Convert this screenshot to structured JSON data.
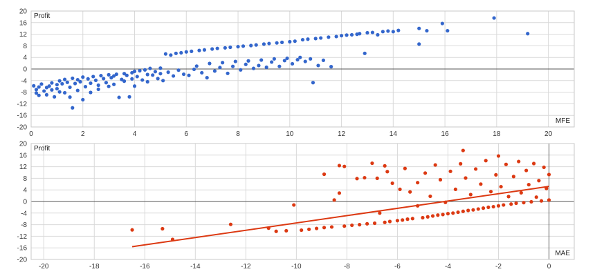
{
  "chart_data": [
    {
      "type": "scatter",
      "title": "",
      "ylabel": "Profit",
      "xlabel": "MFE",
      "xlim": [
        0,
        21
      ],
      "ylim": [
        -20,
        20
      ],
      "xticks": [
        "0",
        "2",
        "4",
        "6",
        "8",
        "10",
        "12",
        "14",
        "16",
        "18",
        "20"
      ],
      "yticks": [
        "-20",
        "-16",
        "-12",
        "-8",
        "-4",
        "0",
        "4",
        "8",
        "12",
        "16",
        "20"
      ],
      "grid": true,
      "color": "#3366cc",
      "series": [
        {
          "values": [
            [
              0.1,
              -5.8
            ],
            [
              0.2,
              -7.1
            ],
            [
              0.2,
              -8.3
            ],
            [
              0.3,
              -6.2
            ],
            [
              0.3,
              -9.1
            ],
            [
              0.4,
              -5.2
            ],
            [
              0.5,
              -7.6
            ],
            [
              0.6,
              -6.4
            ],
            [
              0.6,
              -8.9
            ],
            [
              0.7,
              -5.9
            ],
            [
              0.8,
              -4.8
            ],
            [
              0.8,
              -7.2
            ],
            [
              0.9,
              -9.6
            ],
            [
              1.0,
              -5.4
            ],
            [
              1.0,
              -6.8
            ],
            [
              1.1,
              -4.1
            ],
            [
              1.1,
              -7.9
            ],
            [
              1.2,
              -5.1
            ],
            [
              1.3,
              -3.6
            ],
            [
              1.3,
              -8.2
            ],
            [
              1.4,
              -4.6
            ],
            [
              1.5,
              -6.3
            ],
            [
              1.5,
              -9.7
            ],
            [
              1.6,
              -3.2
            ],
            [
              1.6,
              -13.4
            ],
            [
              1.7,
              -5.0
            ],
            [
              1.8,
              -3.7
            ],
            [
              1.8,
              -7.4
            ],
            [
              1.9,
              -4.4
            ],
            [
              2.0,
              -2.8
            ],
            [
              2.0,
              -10.6
            ],
            [
              2.1,
              -6.1
            ],
            [
              2.2,
              -3.4
            ],
            [
              2.3,
              -4.9
            ],
            [
              2.3,
              -8.1
            ],
            [
              2.4,
              -2.6
            ],
            [
              2.5,
              -3.9
            ],
            [
              2.6,
              -5.6
            ],
            [
              2.6,
              -7.0
            ],
            [
              2.7,
              -2.3
            ],
            [
              2.8,
              -3.3
            ],
            [
              2.9,
              -4.7
            ],
            [
              3.0,
              -2.0
            ],
            [
              3.0,
              -6.0
            ],
            [
              3.1,
              -3.0
            ],
            [
              3.2,
              -2.4
            ],
            [
              3.2,
              -5.3
            ],
            [
              3.3,
              -1.8
            ],
            [
              3.4,
              -9.8
            ],
            [
              3.5,
              -3.6
            ],
            [
              3.6,
              -1.6
            ],
            [
              3.6,
              -4.2
            ],
            [
              3.7,
              -2.2
            ],
            [
              3.8,
              -9.6
            ],
            [
              3.9,
              -1.3
            ],
            [
              3.9,
              -3.4
            ],
            [
              4.0,
              -0.8
            ],
            [
              4.0,
              -5.9
            ],
            [
              4.1,
              -2.6
            ],
            [
              4.2,
              -0.6
            ],
            [
              4.3,
              -3.8
            ],
            [
              4.4,
              -0.3
            ],
            [
              4.5,
              -1.9
            ],
            [
              4.5,
              -4.4
            ],
            [
              4.6,
              0.2
            ],
            [
              4.7,
              -2.1
            ],
            [
              4.8,
              -0.9
            ],
            [
              4.9,
              -3.3
            ],
            [
              5.0,
              0.3
            ],
            [
              5.0,
              -1.6
            ],
            [
              5.1,
              -4.0
            ],
            [
              5.2,
              5.2
            ],
            [
              5.3,
              -1.1
            ],
            [
              5.4,
              4.8
            ],
            [
              5.5,
              -2.4
            ],
            [
              5.6,
              5.4
            ],
            [
              5.7,
              -0.4
            ],
            [
              5.8,
              5.6
            ],
            [
              5.9,
              -1.8
            ],
            [
              6.0,
              5.9
            ],
            [
              6.1,
              -2.2
            ],
            [
              6.2,
              6.1
            ],
            [
              6.3,
              -0.1
            ],
            [
              6.4,
              1.0
            ],
            [
              6.5,
              6.4
            ],
            [
              6.6,
              -1.3
            ],
            [
              6.7,
              6.6
            ],
            [
              6.8,
              -3.0
            ],
            [
              6.9,
              1.9
            ],
            [
              7.0,
              6.9
            ],
            [
              7.1,
              -0.7
            ],
            [
              7.2,
              7.1
            ],
            [
              7.3,
              0.5
            ],
            [
              7.4,
              2.2
            ],
            [
              7.5,
              7.3
            ],
            [
              7.6,
              -1.5
            ],
            [
              7.7,
              7.5
            ],
            [
              7.8,
              0.9
            ],
            [
              7.9,
              2.6
            ],
            [
              8.0,
              7.7
            ],
            [
              8.1,
              -0.3
            ],
            [
              8.2,
              7.9
            ],
            [
              8.3,
              1.6
            ],
            [
              8.4,
              2.8
            ],
            [
              8.5,
              8.1
            ],
            [
              8.6,
              0.2
            ],
            [
              8.7,
              8.3
            ],
            [
              8.8,
              1.2
            ],
            [
              8.9,
              3.1
            ],
            [
              9.0,
              8.6
            ],
            [
              9.1,
              0.6
            ],
            [
              9.2,
              8.8
            ],
            [
              9.3,
              2.4
            ],
            [
              9.4,
              3.5
            ],
            [
              9.5,
              9.0
            ],
            [
              9.6,
              0.9
            ],
            [
              9.7,
              9.2
            ],
            [
              9.8,
              2.9
            ],
            [
              9.9,
              3.7
            ],
            [
              10.0,
              9.4
            ],
            [
              10.1,
              1.8
            ],
            [
              10.2,
              9.6
            ],
            [
              10.3,
              3.2
            ],
            [
              10.4,
              4.0
            ],
            [
              10.5,
              10.1
            ],
            [
              10.6,
              2.6
            ],
            [
              10.7,
              10.3
            ],
            [
              10.8,
              3.5
            ],
            [
              10.9,
              -4.7
            ],
            [
              11.0,
              10.5
            ],
            [
              11.1,
              1.2
            ],
            [
              11.2,
              10.7
            ],
            [
              11.3,
              3.0
            ],
            [
              11.5,
              11.0
            ],
            [
              11.6,
              0.8
            ],
            [
              11.8,
              11.2
            ],
            [
              12.0,
              11.5
            ],
            [
              12.2,
              11.7
            ],
            [
              12.4,
              11.8
            ],
            [
              12.6,
              12.0
            ],
            [
              12.7,
              12.2
            ],
            [
              12.9,
              5.4
            ],
            [
              13.0,
              12.5
            ],
            [
              13.2,
              12.6
            ],
            [
              13.4,
              11.8
            ],
            [
              13.6,
              12.9
            ],
            [
              13.8,
              13.1
            ],
            [
              14.0,
              12.9
            ],
            [
              14.2,
              13.3
            ],
            [
              15.0,
              14.0
            ],
            [
              15.0,
              8.6
            ],
            [
              15.3,
              13.2
            ],
            [
              15.9,
              15.7
            ],
            [
              16.1,
              13.2
            ],
            [
              17.9,
              17.6
            ],
            [
              19.2,
              12.2
            ]
          ]
        }
      ]
    },
    {
      "type": "scatter",
      "title": "",
      "ylabel": "Profit",
      "xlabel": "MAE",
      "xlim": [
        -20.5,
        1
      ],
      "ylim": [
        -20,
        20
      ],
      "xticks": [
        "-20",
        "-18",
        "-16",
        "-14",
        "-12",
        "-10",
        "-8",
        "-6",
        "-4",
        "-2",
        "0"
      ],
      "yticks": [
        "-20",
        "-16",
        "-12",
        "-8",
        "-4",
        "0",
        "4",
        "8",
        "12",
        "16",
        "20"
      ],
      "grid": true,
      "color": "#dc3912",
      "trendline": {
        "x": [
          -16.5,
          0.0
        ],
        "y": [
          -15.6,
          5.2
        ]
      },
      "series": [
        {
          "values": [
            [
              -16.5,
              -9.8
            ],
            [
              -15.3,
              -9.4
            ],
            [
              -14.9,
              -13.1
            ],
            [
              -12.6,
              -7.9
            ],
            [
              -11.1,
              -9.2
            ],
            [
              -10.8,
              -10.3
            ],
            [
              -10.4,
              -10.1
            ],
            [
              -10.1,
              -1.2
            ],
            [
              -9.8,
              -9.9
            ],
            [
              -9.5,
              -9.6
            ],
            [
              -9.2,
              -9.3
            ],
            [
              -8.9,
              9.4
            ],
            [
              -8.9,
              -9.0
            ],
            [
              -8.6,
              -8.8
            ],
            [
              -8.5,
              0.5
            ],
            [
              -8.3,
              12.4
            ],
            [
              -8.3,
              2.9
            ],
            [
              -8.1,
              -8.5
            ],
            [
              -8.1,
              12.1
            ],
            [
              -7.8,
              -8.2
            ],
            [
              -7.6,
              7.9
            ],
            [
              -7.5,
              -8.0
            ],
            [
              -7.3,
              8.2
            ],
            [
              -7.2,
              -7.7
            ],
            [
              -7.0,
              13.2
            ],
            [
              -6.9,
              -7.5
            ],
            [
              -6.8,
              8.0
            ],
            [
              -6.7,
              -4.0
            ],
            [
              -6.5,
              12.3
            ],
            [
              -6.5,
              -7.2
            ],
            [
              -6.4,
              10.3
            ],
            [
              -6.3,
              -6.9
            ],
            [
              -6.2,
              6.3
            ],
            [
              -6.0,
              -6.6
            ],
            [
              -5.9,
              4.2
            ],
            [
              -5.8,
              -6.4
            ],
            [
              -5.7,
              11.4
            ],
            [
              -5.6,
              -6.1
            ],
            [
              -5.5,
              3.3
            ],
            [
              -5.4,
              -5.9
            ],
            [
              -5.2,
              -1.5
            ],
            [
              -5.2,
              6.5
            ],
            [
              -5.0,
              -5.6
            ],
            [
              -4.9,
              9.8
            ],
            [
              -4.8,
              -5.3
            ],
            [
              -4.7,
              1.8
            ],
            [
              -4.6,
              -5.0
            ],
            [
              -4.5,
              12.6
            ],
            [
              -4.4,
              -4.7
            ],
            [
              -4.3,
              7.5
            ],
            [
              -4.2,
              -4.5
            ],
            [
              -4.1,
              -0.3
            ],
            [
              -4.0,
              -4.2
            ],
            [
              -3.9,
              10.4
            ],
            [
              -3.8,
              -4.0
            ],
            [
              -3.7,
              4.2
            ],
            [
              -3.6,
              -3.7
            ],
            [
              -3.5,
              13.0
            ],
            [
              -3.4,
              17.6
            ],
            [
              -3.4,
              -3.4
            ],
            [
              -3.3,
              8.1
            ],
            [
              -3.2,
              -3.1
            ],
            [
              -3.1,
              2.4
            ],
            [
              -3.0,
              -2.9
            ],
            [
              -2.9,
              11.2
            ],
            [
              -2.8,
              -2.6
            ],
            [
              -2.7,
              6.0
            ],
            [
              -2.6,
              -2.3
            ],
            [
              -2.5,
              14.1
            ],
            [
              -2.4,
              -2.0
            ],
            [
              -2.3,
              3.4
            ],
            [
              -2.2,
              -1.8
            ],
            [
              -2.1,
              9.2
            ],
            [
              -2.0,
              15.7
            ],
            [
              -2.0,
              -1.5
            ],
            [
              -1.9,
              5.1
            ],
            [
              -1.8,
              -1.2
            ],
            [
              -1.7,
              12.8
            ],
            [
              -1.6,
              1.7
            ],
            [
              -1.5,
              -0.9
            ],
            [
              -1.4,
              8.6
            ],
            [
              -1.3,
              -0.6
            ],
            [
              -1.2,
              13.8
            ],
            [
              -1.1,
              3.0
            ],
            [
              -1.0,
              -0.4
            ],
            [
              -0.9,
              10.7
            ],
            [
              -0.8,
              5.8
            ],
            [
              -0.7,
              -0.1
            ],
            [
              -0.6,
              13.1
            ],
            [
              -0.5,
              1.5
            ],
            [
              -0.4,
              7.2
            ],
            [
              -0.3,
              0.2
            ],
            [
              -0.2,
              11.8
            ],
            [
              -0.1,
              4.5
            ],
            [
              0.0,
              0.5
            ],
            [
              0.0,
              9.3
            ]
          ]
        }
      ]
    }
  ]
}
